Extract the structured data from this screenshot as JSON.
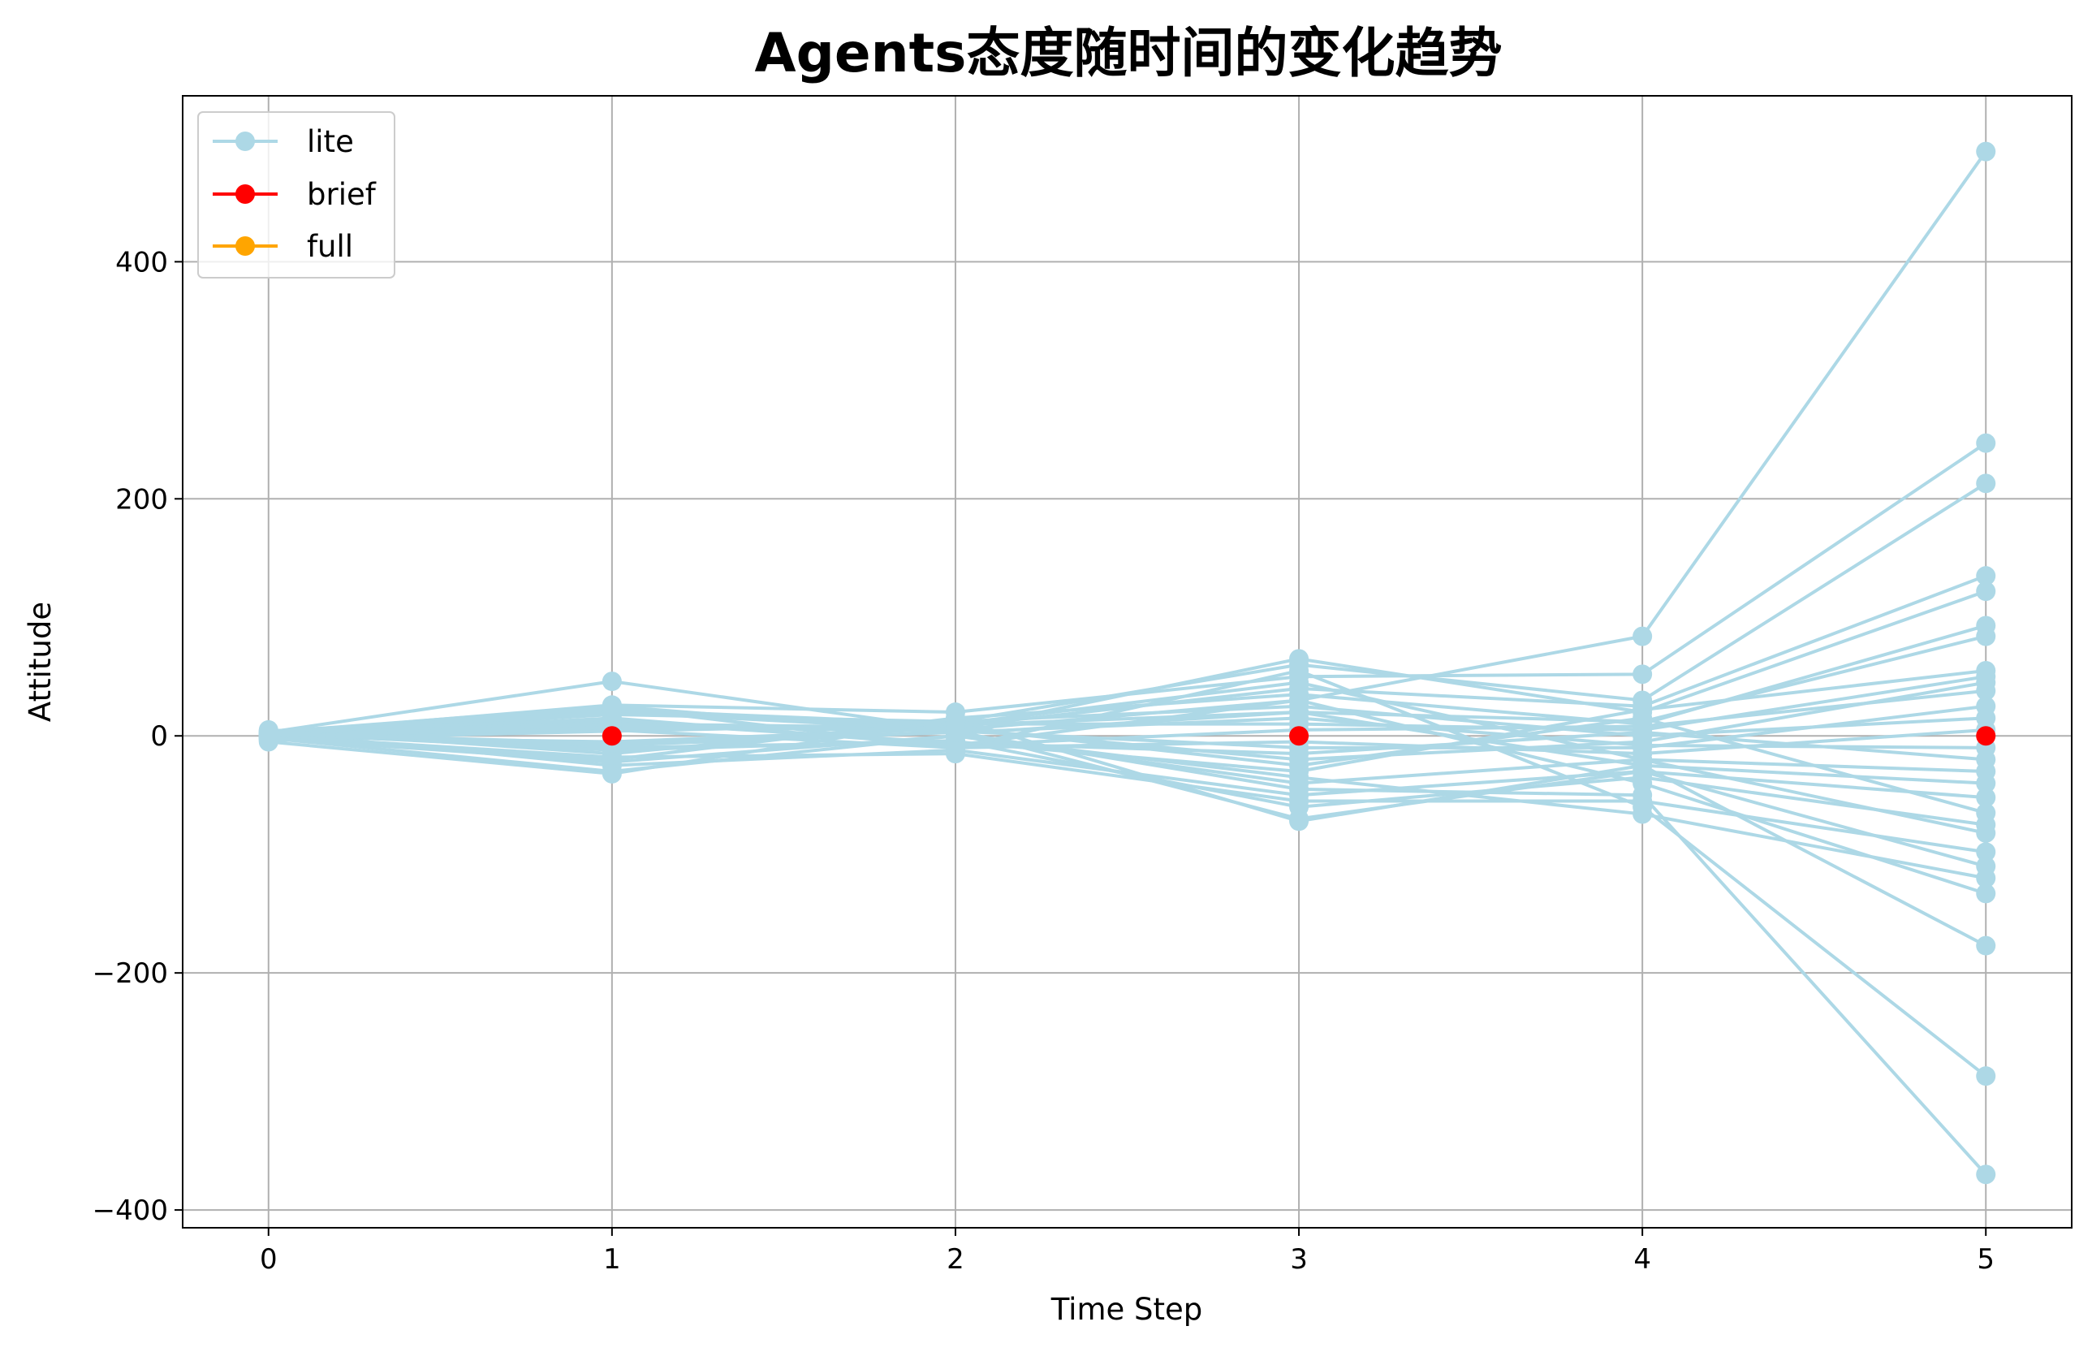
{
  "chart_data": {
    "type": "line",
    "title": "Agents态度随时间的变化趋势",
    "xlabel": "Time Step",
    "ylabel": "Attitude",
    "x": [
      0,
      1,
      2,
      3,
      4,
      5
    ],
    "xlim": [
      -0.25,
      5.25
    ],
    "ylim": [
      -415,
      540
    ],
    "xticks": [
      0,
      1,
      2,
      3,
      4,
      5
    ],
    "yticks": [
      -400,
      -200,
      0,
      200,
      400
    ],
    "ytick_labels": [
      "−400",
      "−200",
      "0",
      "200",
      "400"
    ],
    "grid": true,
    "legend_position": "top-left",
    "colors": {
      "lite": "#add8e6",
      "brief": "#ff0000",
      "full": "#ffa500",
      "grid": "#b0b0b0",
      "axes": "#000000"
    },
    "legend": [
      {
        "name": "lite",
        "color": "#add8e6"
      },
      {
        "name": "brief",
        "color": "#ff0000"
      },
      {
        "name": "full",
        "color": "#ffa500"
      }
    ],
    "series": [
      {
        "group": "lite",
        "values": [
          3,
          46,
          5,
          30,
          84,
          493
        ]
      },
      {
        "group": "lite",
        "values": [
          2,
          26,
          20,
          50,
          52,
          247
        ]
      },
      {
        "group": "lite",
        "values": [
          1,
          18,
          12,
          60,
          30,
          213
        ]
      },
      {
        "group": "lite",
        "values": [
          4,
          20,
          8,
          40,
          25,
          135
        ]
      },
      {
        "group": "lite",
        "values": [
          0,
          10,
          5,
          65,
          20,
          122
        ]
      },
      {
        "group": "lite",
        "values": [
          -2,
          -20,
          15,
          35,
          10,
          93
        ]
      },
      {
        "group": "lite",
        "values": [
          3,
          25,
          2,
          20,
          12,
          84
        ]
      },
      {
        "group": "lite",
        "values": [
          1,
          -10,
          -5,
          -30,
          22,
          55
        ]
      },
      {
        "group": "lite",
        "values": [
          2,
          22,
          10,
          10,
          5,
          50
        ]
      },
      {
        "group": "lite",
        "values": [
          -1,
          -5,
          6,
          -20,
          -5,
          45
        ]
      },
      {
        "group": "lite",
        "values": [
          0,
          15,
          -8,
          5,
          8,
          38
        ]
      },
      {
        "group": "lite",
        "values": [
          -3,
          8,
          4,
          -10,
          -10,
          25
        ]
      },
      {
        "group": "lite",
        "values": [
          5,
          -15,
          12,
          25,
          0,
          15
        ]
      },
      {
        "group": "lite",
        "values": [
          -4,
          5,
          -10,
          -5,
          -15,
          5
        ]
      },
      {
        "group": "lite",
        "values": [
          2,
          -8,
          3,
          15,
          -8,
          -10
        ]
      },
      {
        "group": "lite",
        "values": [
          1,
          12,
          -6,
          -15,
          3,
          -20
        ]
      },
      {
        "group": "lite",
        "values": [
          -2,
          -30,
          0,
          -40,
          -20,
          -30
        ]
      },
      {
        "group": "lite",
        "values": [
          0,
          6,
          9,
          20,
          -25,
          -40
        ]
      },
      {
        "group": "lite",
        "values": [
          3,
          -25,
          -12,
          -50,
          -30,
          -52
        ]
      },
      {
        "group": "lite",
        "values": [
          -1,
          10,
          7,
          -25,
          15,
          -65
        ]
      },
      {
        "group": "lite",
        "values": [
          2,
          -12,
          -4,
          -60,
          -35,
          -75
        ]
      },
      {
        "group": "lite",
        "values": [
          -3,
          4,
          10,
          45,
          -20,
          -82
        ]
      },
      {
        "group": "lite",
        "values": [
          0,
          -18,
          -15,
          -55,
          -55,
          -98
        ]
      },
      {
        "group": "lite",
        "values": [
          1,
          20,
          5,
          -70,
          -30,
          -110
        ]
      },
      {
        "group": "lite",
        "values": [
          -2,
          -22,
          0,
          -35,
          -66,
          -120
        ]
      },
      {
        "group": "lite",
        "values": [
          4,
          14,
          -8,
          30,
          -40,
          -133
        ]
      },
      {
        "group": "lite",
        "values": [
          -5,
          -32,
          14,
          -72,
          -25,
          -177
        ]
      },
      {
        "group": "lite",
        "values": [
          0,
          24,
          -10,
          55,
          -60,
          -287
        ]
      },
      {
        "group": "lite",
        "values": [
          2,
          -6,
          3,
          -45,
          -50,
          -370
        ]
      },
      {
        "group": "brief",
        "points": [
          [
            1,
            0
          ],
          [
            3,
            0
          ],
          [
            5,
            0
          ]
        ]
      }
    ]
  }
}
